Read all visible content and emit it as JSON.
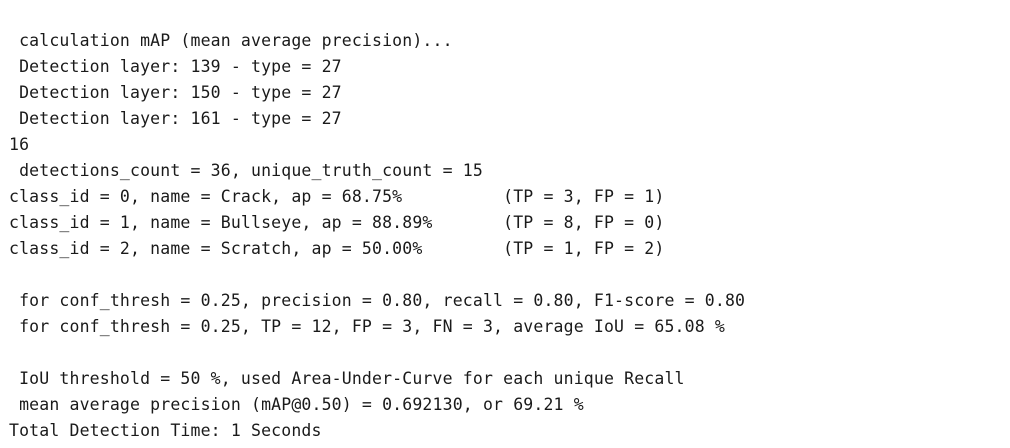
{
  "console": {
    "lines": [
      " calculation mAP (mean average precision)...",
      " Detection layer: 139 - type = 27",
      " Detection layer: 150 - type = 27",
      " Detection layer: 161 - type = 27",
      "16",
      " detections_count = 36, unique_truth_count = 15",
      "class_id = 0, name = Crack, ap = 68.75%          (TP = 3, FP = 1)",
      "class_id = 1, name = Bullseye, ap = 88.89%       (TP = 8, FP = 0)",
      "class_id = 2, name = Scratch, ap = 50.00%        (TP = 1, FP = 2)",
      "",
      " for conf_thresh = 0.25, precision = 0.80, recall = 0.80, F1-score = 0.80",
      " for conf_thresh = 0.25, TP = 12, FP = 3, FN = 3, average IoU = 65.08 %",
      "",
      " IoU threshold = 50 %, used Area-Under-Curve for each unique Recall",
      " mean average precision (mAP@0.50) = 0.692130, or 69.21 %",
      "Total Detection Time: 1 Seconds"
    ]
  }
}
